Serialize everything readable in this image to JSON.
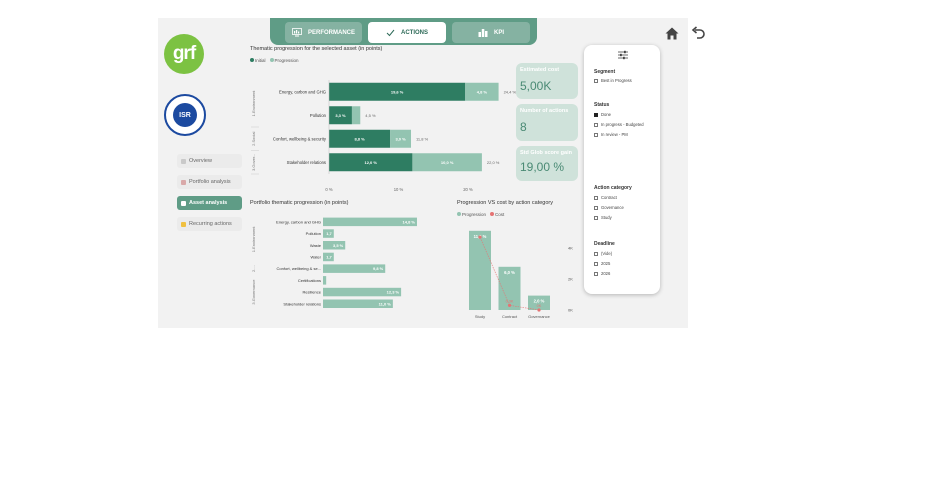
{
  "tabs": [
    {
      "label": "PERFORMANCE",
      "icon": "monitor-chart-icon"
    },
    {
      "label": "ACTIONS",
      "icon": "check-icon"
    },
    {
      "label": "KPI",
      "icon": "bar-chart-icon"
    }
  ],
  "logos": {
    "grf": "grf",
    "isr": "ISR"
  },
  "nav": [
    {
      "label": "Overview",
      "icon": "overview-icon"
    },
    {
      "label": "Portfolio analysis",
      "icon": "portfolio-icon"
    },
    {
      "label": "Asset analysis",
      "icon": "asset-icon"
    },
    {
      "label": "Recurring actions",
      "icon": "recurring-icon"
    }
  ],
  "kpis": [
    {
      "label": "Estimated cost",
      "value": "5,00K"
    },
    {
      "label": "Number of actions",
      "value": "8"
    },
    {
      "label": "Std Glob score gain",
      "value": "19,00 %"
    }
  ],
  "filters": {
    "segment": {
      "title": "Segment",
      "options": [
        {
          "label": "Best in Progress",
          "checked": false
        }
      ]
    },
    "status": {
      "title": "Status",
      "options": [
        {
          "label": "Done",
          "checked": true
        },
        {
          "label": "In progress - Budgeted",
          "checked": false
        },
        {
          "label": "In review - PM",
          "checked": false
        }
      ]
    },
    "category": {
      "title": "Action category",
      "options": [
        {
          "label": "Contract",
          "checked": false
        },
        {
          "label": "Governance",
          "checked": false
        },
        {
          "label": "Study",
          "checked": false
        }
      ]
    },
    "deadline": {
      "title": "Deadline",
      "options": [
        {
          "label": "(Vide)",
          "checked": false
        },
        {
          "label": "2025",
          "checked": false
        },
        {
          "label": "2026",
          "checked": false
        }
      ]
    }
  },
  "colors": {
    "dark_green": "#2e7d62",
    "light_green": "#93c4b1",
    "cost_red": "#e57373",
    "accent": "#5f9c86"
  },
  "chart_data": [
    {
      "type": "bar",
      "title": "Thematic progression for the selected asset (in points)",
      "legend": [
        "Initial",
        "Progression"
      ],
      "groups": [
        "1.Environment",
        "2.Social",
        "3.Gover..."
      ],
      "categories": [
        "Energy, carbon and GHG",
        "Pollution",
        "Confort, wellbeing & security",
        "Stakeholder relations"
      ],
      "category_groups": [
        0,
        0,
        1,
        2
      ],
      "series": [
        {
          "name": "Initial",
          "values": [
            19.6,
            3.3,
            8.8,
            12.0
          ],
          "labels": [
            "19,6 %",
            "3,3 %",
            "8,8 %",
            "12,0 %"
          ]
        },
        {
          "name": "Progression",
          "values": [
            4.8,
            1.2,
            3.0,
            10.0
          ],
          "labels": [
            "4,8 %",
            "",
            "3,0 %",
            "10,0 %"
          ]
        }
      ],
      "totals": [
        "24,4 %",
        "4,5 %",
        "11,8 %",
        "22,0 %"
      ],
      "xticks": [
        "0 %",
        "10 %",
        "20 %"
      ],
      "xlim": [
        0,
        20
      ]
    },
    {
      "type": "bar",
      "title": "Portfolio thematic progression (in points)",
      "groups": [
        "1.Environment",
        "2....",
        "3.Governance"
      ],
      "categories": [
        "Energy, carbon and GHG",
        "Pollution",
        "Waste",
        "Water",
        "Confort, wellbeing & se...",
        "Certifications",
        "Resilience",
        "Stakeholder relations"
      ],
      "category_groups": [
        0,
        0,
        0,
        0,
        1,
        2,
        2,
        2
      ],
      "values": [
        14.8,
        1.7,
        3.5,
        1.7,
        9.8,
        0.5,
        12.3,
        11.0
      ],
      "labels": [
        "14,8 %",
        "1,7",
        "3,5 %",
        "1,7",
        "9,8 %",
        "",
        "12,3 %",
        "11,0 %"
      ]
    },
    {
      "type": "bar",
      "title": "Progression VS cost by action category",
      "legend": [
        "Progression",
        "Cost"
      ],
      "categories": [
        "Study",
        "Contract",
        "Governance"
      ],
      "series": [
        {
          "name": "Progression",
          "values": [
            11.0,
            6.0,
            2.0
          ],
          "labels": [
            "11,0 %",
            "6,0 %",
            "2,0 %"
          ]
        },
        {
          "name": "Cost",
          "values": [
            4.7,
            0.3,
            0.0
          ],
          "labels": [
            "",
            "0,3K",
            "0K"
          ]
        }
      ],
      "y2_ticks": [
        "0K",
        "2K",
        "4K"
      ],
      "y2lim": [
        0,
        5
      ]
    }
  ]
}
